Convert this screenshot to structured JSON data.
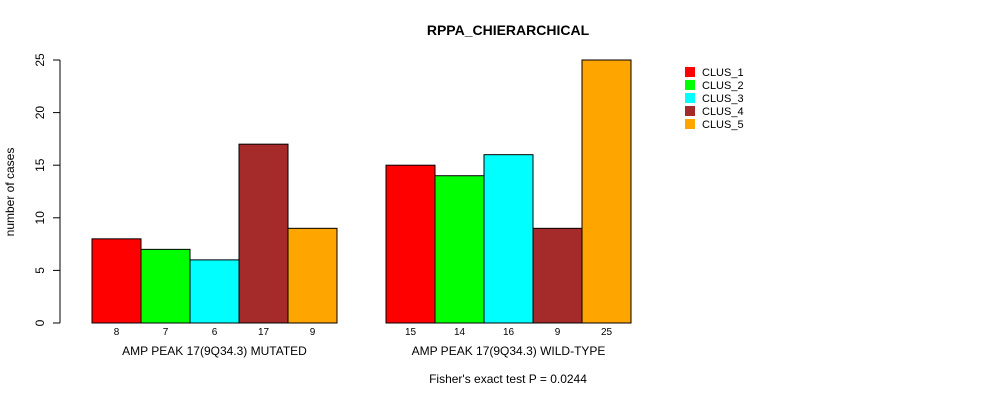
{
  "chart_data": {
    "type": "bar",
    "title": "RPPA_CHIERARCHICAL",
    "ylabel": "number of cases",
    "xlabel": "",
    "ylim": [
      0,
      25
    ],
    "yticks": [
      "0",
      "5",
      "10",
      "15",
      "20",
      "25"
    ],
    "grid": false,
    "legend_position": "top-right",
    "groups": [
      "AMP PEAK 17(9Q34.3) MUTATED",
      "AMP PEAK 17(9Q34.3) WILD-TYPE"
    ],
    "series": [
      {
        "name": "CLUS_1",
        "color": "#ff0000",
        "values": [
          8,
          15
        ]
      },
      {
        "name": "CLUS_2",
        "color": "#00ff00",
        "values": [
          7,
          14
        ]
      },
      {
        "name": "CLUS_3",
        "color": "#00ffff",
        "values": [
          6,
          16
        ]
      },
      {
        "name": "CLUS_4",
        "color": "#a52a2a",
        "values": [
          17,
          9
        ]
      },
      {
        "name": "CLUS_5",
        "color": "#ffa500",
        "values": [
          9,
          25
        ]
      }
    ],
    "annotation": "Fisher's exact test P = 0.0244"
  }
}
